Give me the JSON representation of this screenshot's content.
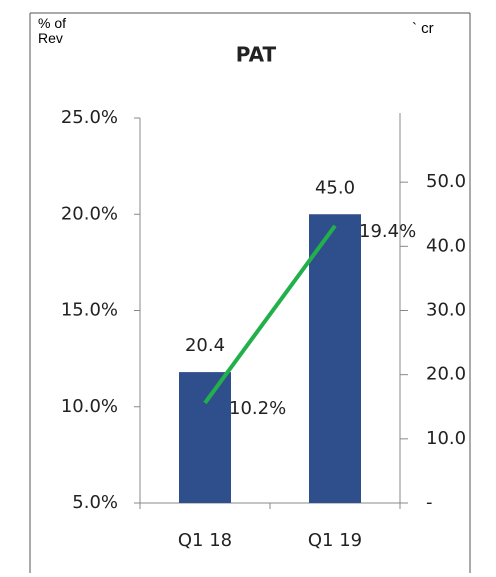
{
  "chart_data": {
    "type": "bar_line",
    "title": "PAT",
    "y_label": "% of Rev",
    "y2_label": "` cr",
    "categories": [
      "Q1 18",
      "Q1 19"
    ],
    "series": [
      {
        "name": "PAT",
        "type": "bar",
        "axis": "y2",
        "color": "#2f4f8c",
        "values": [
          20.4,
          45.0
        ],
        "value_labels": [
          "20.4",
          "45.0"
        ]
      },
      {
        "name": "% of Rev",
        "type": "line",
        "axis": "y",
        "color": "#22b04b",
        "values": [
          10.2,
          19.4
        ],
        "value_labels": [
          "10.2%",
          "19.4%"
        ]
      }
    ],
    "ylim": [
      5,
      25
    ],
    "yticks": [
      {
        "value": 5,
        "label": "5.0%"
      },
      {
        "value": 10,
        "label": "10.0%"
      },
      {
        "value": 15,
        "label": "15.0%"
      },
      {
        "value": 20,
        "label": "20.0%"
      },
      {
        "value": 25,
        "label": "25.0%"
      }
    ],
    "y2lim": [
      0,
      60
    ],
    "y2ticks": [
      {
        "value": 0,
        "label": "-"
      },
      {
        "value": 10,
        "label": "10.0"
      },
      {
        "value": 20,
        "label": "20.0"
      },
      {
        "value": 30,
        "label": "30.0"
      },
      {
        "value": 40,
        "label": "40.0"
      },
      {
        "value": 50,
        "label": "50.0"
      }
    ]
  }
}
